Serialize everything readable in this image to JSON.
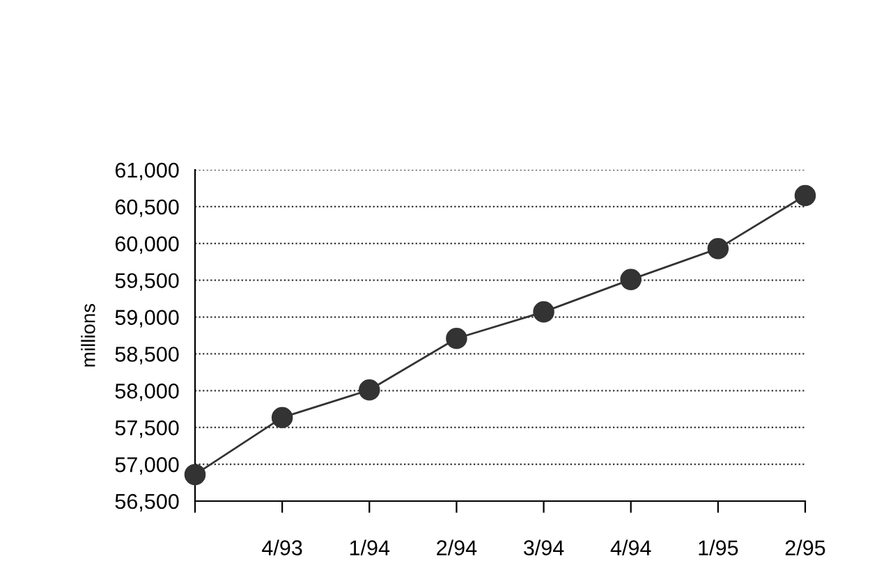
{
  "chart_data": {
    "type": "line",
    "ylabel": "millions",
    "categories": [
      null,
      "4/93",
      "1/94",
      "2/94",
      "3/94",
      "4/94",
      "1/95",
      "2/95"
    ],
    "series": [
      {
        "color": "#333333",
        "values": [
          56860,
          57635,
          58010,
          58710,
          59070,
          59510,
          59930,
          60650
        ]
      }
    ],
    "ylim": [
      56500,
      61000
    ],
    "yticks": [
      {
        "value": 56500,
        "label": "56,500"
      },
      {
        "value": 57000,
        "label": "57,000"
      },
      {
        "value": 57500,
        "label": "57,500"
      },
      {
        "value": 58000,
        "label": "58,000"
      },
      {
        "value": 58500,
        "label": "58,500"
      },
      {
        "value": 59000,
        "label": "59,000"
      },
      {
        "value": 59500,
        "label": "59,500"
      },
      {
        "value": 60000,
        "label": "60,000"
      },
      {
        "value": 60500,
        "label": "60,500"
      },
      {
        "value": 61000,
        "label": "61,000"
      }
    ],
    "grid": "y",
    "marker": "circle",
    "line_style": "solid"
  }
}
